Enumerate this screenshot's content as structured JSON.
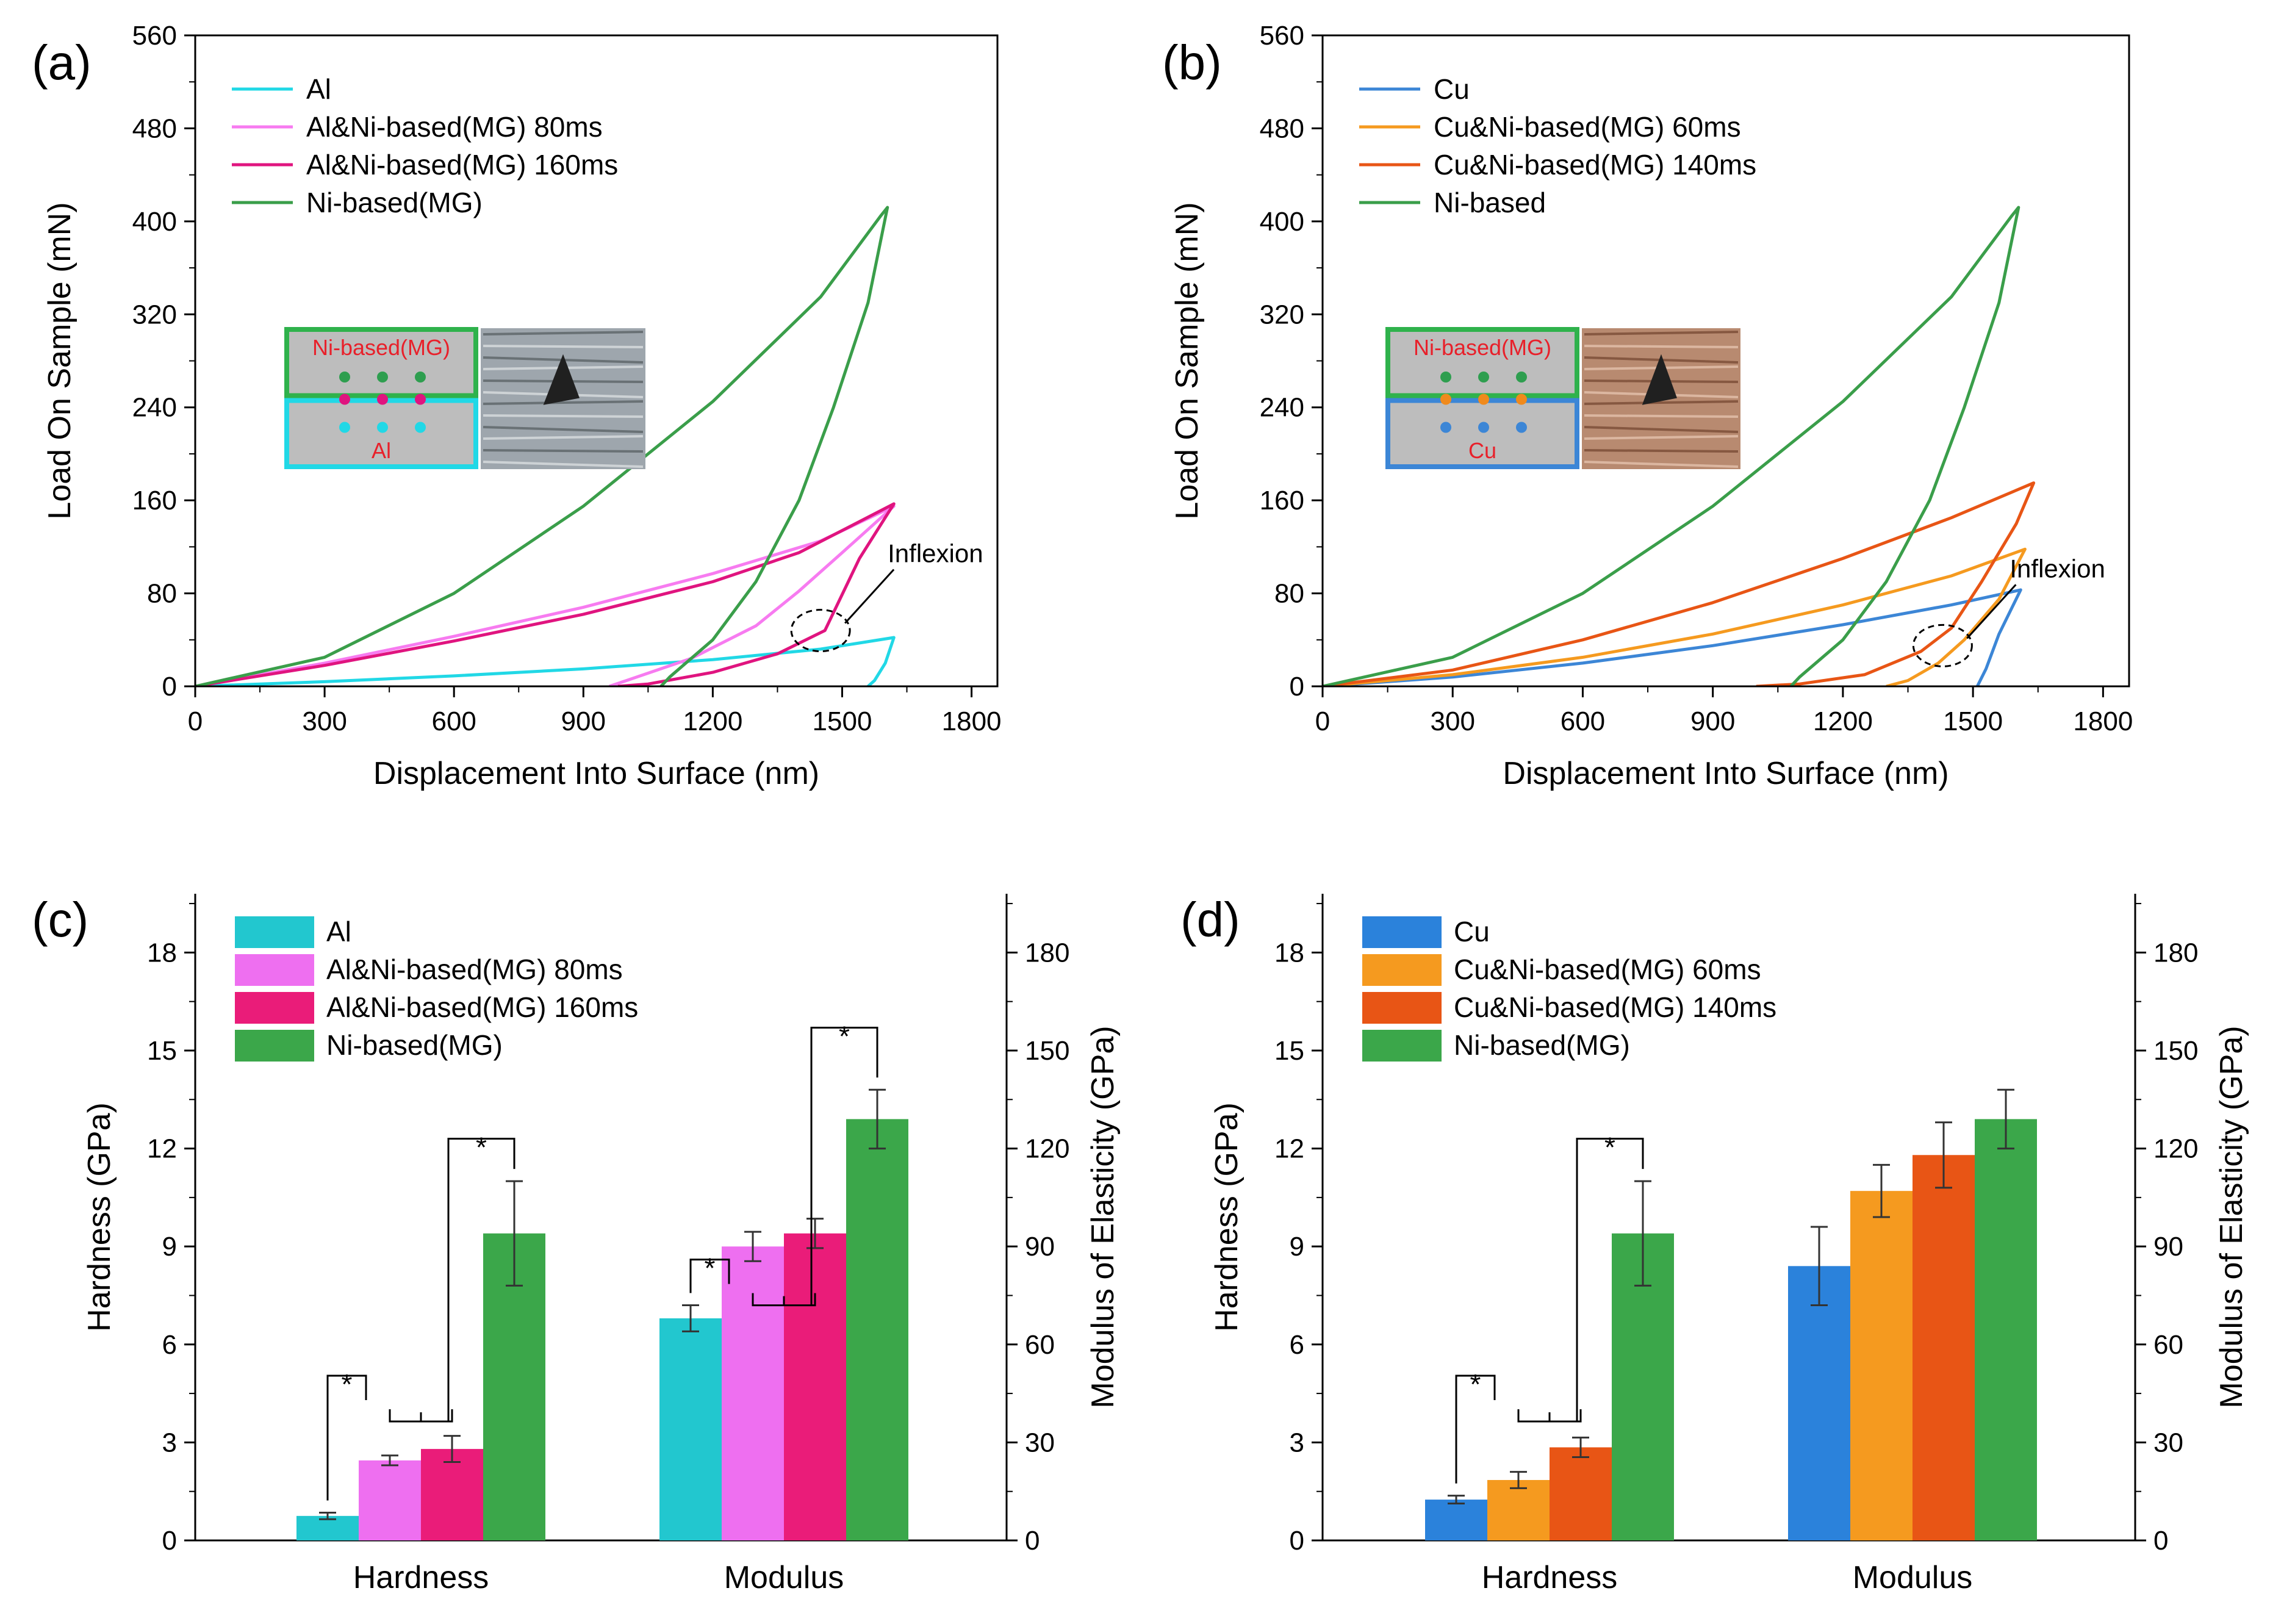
{
  "chart_data": [
    {
      "panel": "(a)",
      "type": "line",
      "title": "",
      "xlabel": "Displacement Into Surface (nm)",
      "ylabel": "Load On Sample (mN)",
      "xlim": [
        0,
        1860
      ],
      "ylim": [
        0,
        560
      ],
      "xticks": [
        0,
        300,
        600,
        900,
        1200,
        1500,
        1800
      ],
      "yticks": [
        0,
        80,
        160,
        240,
        320,
        400,
        480,
        560
      ],
      "legend_position": "top-left",
      "annotation": "Inflexion",
      "inflexion_point": [
        1450,
        48
      ],
      "inset": {
        "top_label": "Ni-based(MG)",
        "bottom_label": "Al",
        "top_dot_color": "#2e9e4f",
        "mid_dot_color": "#e0147f",
        "bottom_dot_color": "#21d8e6"
      },
      "series": [
        {
          "name": "Al",
          "color": "#21d8e6",
          "loading": [
            [
              0,
              0
            ],
            [
              300,
              4
            ],
            [
              600,
              9
            ],
            [
              900,
              15
            ],
            [
              1200,
              23
            ],
            [
              1450,
              32
            ],
            [
              1620,
              42
            ]
          ],
          "unloading": [
            [
              1620,
              42
            ],
            [
              1600,
              20
            ],
            [
              1575,
              5
            ],
            [
              1560,
              0
            ]
          ]
        },
        {
          "name": "Al&Ni-based(MG) 80ms",
          "color": "#f77bf0",
          "loading": [
            [
              0,
              0
            ],
            [
              300,
              20
            ],
            [
              600,
              43
            ],
            [
              900,
              68
            ],
            [
              1200,
              97
            ],
            [
              1450,
              125
            ],
            [
              1620,
              155
            ]
          ],
          "unloading": [
            [
              1620,
              155
            ],
            [
              1500,
              115
            ],
            [
              1400,
              82
            ],
            [
              1300,
              52
            ],
            [
              1150,
              24
            ],
            [
              1000,
              5
            ],
            [
              960,
              0
            ]
          ]
        },
        {
          "name": "Al&Ni-based(MG) 160ms",
          "color": "#e0147f",
          "loading": [
            [
              0,
              0
            ],
            [
              300,
              18
            ],
            [
              600,
              39
            ],
            [
              900,
              62
            ],
            [
              1200,
              90
            ],
            [
              1400,
              115
            ],
            [
              1620,
              157
            ]
          ],
          "unloading": [
            [
              1620,
              157
            ],
            [
              1540,
              110
            ],
            [
              1460,
              48
            ],
            [
              1350,
              28
            ],
            [
              1200,
              12
            ],
            [
              1050,
              2
            ],
            [
              980,
              0
            ]
          ]
        },
        {
          "name": "Ni-based(MG)",
          "color": "#3a9e4a",
          "loading": [
            [
              0,
              0
            ],
            [
              300,
              25
            ],
            [
              600,
              80
            ],
            [
              900,
              155
            ],
            [
              1200,
              245
            ],
            [
              1450,
              335
            ],
            [
              1590,
              405
            ],
            [
              1605,
              412
            ]
          ],
          "unloading": [
            [
              1605,
              412
            ],
            [
              1560,
              330
            ],
            [
              1480,
              240
            ],
            [
              1400,
              160
            ],
            [
              1300,
              90
            ],
            [
              1200,
              40
            ],
            [
              1100,
              8
            ],
            [
              1080,
              0
            ]
          ]
        }
      ]
    },
    {
      "panel": "(b)",
      "type": "line",
      "title": "",
      "xlabel": "Displacement Into Surface (nm)",
      "ylabel": "Load On Sample (mN)",
      "xlim": [
        0,
        1860
      ],
      "ylim": [
        0,
        560
      ],
      "xticks": [
        0,
        300,
        600,
        900,
        1200,
        1500,
        1800
      ],
      "yticks": [
        0,
        80,
        160,
        240,
        320,
        400,
        480,
        560
      ],
      "legend_position": "top-left",
      "annotation": "Inflexion",
      "inflexion_point": [
        1430,
        35
      ],
      "inset": {
        "top_label": "Ni-based(MG)",
        "bottom_label": "Cu",
        "top_dot_color": "#2e9e4f",
        "mid_dot_color": "#f08a1c",
        "bottom_dot_color": "#3c86d6"
      },
      "series": [
        {
          "name": "Cu",
          "color": "#3c86d6",
          "loading": [
            [
              0,
              0
            ],
            [
              300,
              8
            ],
            [
              600,
              20
            ],
            [
              900,
              35
            ],
            [
              1200,
              53
            ],
            [
              1450,
              70
            ],
            [
              1610,
              83
            ]
          ],
          "unloading": [
            [
              1610,
              83
            ],
            [
              1560,
              45
            ],
            [
              1530,
              15
            ],
            [
              1510,
              0
            ]
          ]
        },
        {
          "name": "Cu&Ni-based(MG) 60ms",
          "color": "#f59a1f",
          "loading": [
            [
              0,
              0
            ],
            [
              300,
              10
            ],
            [
              600,
              25
            ],
            [
              900,
              45
            ],
            [
              1200,
              70
            ],
            [
              1450,
              95
            ],
            [
              1620,
              118
            ]
          ],
          "unloading": [
            [
              1620,
              118
            ],
            [
              1560,
              75
            ],
            [
              1480,
              40
            ],
            [
              1420,
              20
            ],
            [
              1350,
              5
            ],
            [
              1300,
              0
            ]
          ]
        },
        {
          "name": "Cu&Ni-based(MG) 140ms",
          "color": "#e85515",
          "loading": [
            [
              0,
              0
            ],
            [
              300,
              14
            ],
            [
              600,
              40
            ],
            [
              900,
              72
            ],
            [
              1200,
              110
            ],
            [
              1450,
              145
            ],
            [
              1640,
              175
            ]
          ],
          "unloading": [
            [
              1640,
              175
            ],
            [
              1600,
              140
            ],
            [
              1520,
              90
            ],
            [
              1450,
              50
            ],
            [
              1380,
              30
            ],
            [
              1250,
              10
            ],
            [
              1100,
              2
            ],
            [
              1000,
              0
            ]
          ]
        },
        {
          "name": "Ni-based",
          "color": "#3a9e4a",
          "loading": [
            [
              0,
              0
            ],
            [
              300,
              25
            ],
            [
              600,
              80
            ],
            [
              900,
              155
            ],
            [
              1200,
              245
            ],
            [
              1450,
              335
            ],
            [
              1590,
              405
            ],
            [
              1605,
              412
            ]
          ],
          "unloading": [
            [
              1605,
              412
            ],
            [
              1560,
              330
            ],
            [
              1480,
              240
            ],
            [
              1400,
              160
            ],
            [
              1300,
              90
            ],
            [
              1200,
              40
            ],
            [
              1100,
              8
            ],
            [
              1080,
              0
            ]
          ]
        }
      ]
    },
    {
      "panel": "(c)",
      "type": "bar",
      "title": "",
      "xlabel": "",
      "ylabel": "Hardness (GPa)",
      "y2label": "Modulus of Elasticity (GPa)",
      "ylim": [
        0,
        19.8
      ],
      "y2lim": [
        0,
        198
      ],
      "yticks": [
        0,
        3,
        6,
        9,
        12,
        15,
        18
      ],
      "y2ticks": [
        0,
        30,
        60,
        90,
        120,
        150,
        180
      ],
      "categories": [
        "Hardness",
        "Modulus"
      ],
      "legend_position": "top-left",
      "significance_marker": "*",
      "series": [
        {
          "name": "Al",
          "color": "#22c7cf",
          "values": [
            0.75,
            68
          ],
          "errors": [
            0.1,
            4
          ]
        },
        {
          "name": "Al&Ni-based(MG) 80ms",
          "color": "#ee6ff0",
          "values": [
            2.45,
            90
          ],
          "errors": [
            0.15,
            4.5
          ]
        },
        {
          "name": "Al&Ni-based(MG) 160ms",
          "color": "#ea1c79",
          "values": [
            2.8,
            94
          ],
          "errors": [
            0.4,
            4.5
          ]
        },
        {
          "name": "Ni-based(MG)",
          "color": "#3ba74a",
          "values": [
            9.4,
            129
          ],
          "errors": [
            1.6,
            9
          ]
        }
      ]
    },
    {
      "panel": "(d)",
      "type": "bar",
      "title": "",
      "xlabel": "",
      "ylabel": "Hardness (GPa)",
      "y2label": "Modulus of Elasticity (GPa)",
      "ylim": [
        0,
        19.8
      ],
      "y2lim": [
        0,
        198
      ],
      "yticks": [
        0,
        3,
        6,
        9,
        12,
        15,
        18
      ],
      "y2ticks": [
        0,
        30,
        60,
        90,
        120,
        150,
        180
      ],
      "categories": [
        "Hardness",
        "Modulus"
      ],
      "legend_position": "top-left",
      "significance_marker": "*",
      "series": [
        {
          "name": "Cu",
          "color": "#2b82db",
          "values": [
            1.25,
            84
          ],
          "errors": [
            0.12,
            12
          ]
        },
        {
          "name": "Cu&Ni-based(MG) 60ms",
          "color": "#f59a1f",
          "values": [
            1.85,
            107
          ],
          "errors": [
            0.25,
            8
          ]
        },
        {
          "name": "Cu&Ni-based(MG) 140ms",
          "color": "#e85515",
          "values": [
            2.85,
            118
          ],
          "errors": [
            0.3,
            10
          ]
        },
        {
          "name": "Ni-based(MG)",
          "color": "#3ba74a",
          "values": [
            9.4,
            129
          ],
          "errors": [
            1.6,
            9
          ]
        }
      ]
    }
  ]
}
